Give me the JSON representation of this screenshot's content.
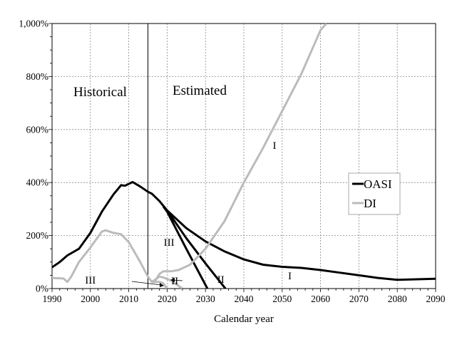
{
  "chart_data": {
    "type": "line",
    "title": "",
    "xlabel": "Calendar year",
    "ylabel": "",
    "xlim": [
      1990,
      2090
    ],
    "ylim": [
      0,
      1000
    ],
    "x_ticks": [
      "1990",
      "2000",
      "2010",
      "2020",
      "2030",
      "2040",
      "2050",
      "2060",
      "2070",
      "2080",
      "2090"
    ],
    "y_ticks": [
      "0%",
      "200%",
      "400%",
      "600%",
      "800%",
      "1,000%"
    ],
    "grid": true,
    "legend": {
      "placement": "right",
      "entries": [
        "OASI",
        "DI"
      ]
    },
    "colors": {
      "OASI": "#000000",
      "DI": "#bbbbbb"
    },
    "divider_year": 2015,
    "region_labels": {
      "historical": "Historical",
      "estimated": "Estimated"
    },
    "series": [
      {
        "name": "OASI",
        "alternative": "I",
        "points": [
          [
            1990,
            80
          ],
          [
            1992,
            100
          ],
          [
            1994,
            125
          ],
          [
            1997,
            150
          ],
          [
            2000,
            210
          ],
          [
            2003,
            290
          ],
          [
            2006,
            355
          ],
          [
            2008,
            390
          ],
          [
            2009,
            388
          ],
          [
            2011,
            402
          ],
          [
            2013,
            385
          ],
          [
            2015,
            365
          ],
          [
            2016,
            358
          ],
          [
            2018,
            330
          ],
          [
            2020,
            295
          ],
          [
            2025,
            228
          ],
          [
            2030,
            178
          ],
          [
            2035,
            140
          ],
          [
            2040,
            110
          ],
          [
            2045,
            90
          ],
          [
            2050,
            82
          ],
          [
            2055,
            78
          ],
          [
            2060,
            70
          ],
          [
            2065,
            60
          ],
          [
            2070,
            50
          ],
          [
            2075,
            40
          ],
          [
            2080,
            33
          ],
          [
            2085,
            35
          ],
          [
            2090,
            37
          ]
        ]
      },
      {
        "name": "OASI",
        "alternative": "II",
        "points": [
          [
            2019,
            310
          ],
          [
            2020,
            295
          ],
          [
            2025,
            190
          ],
          [
            2030,
            95
          ],
          [
            2035.2,
            0
          ]
        ]
      },
      {
        "name": "OASI",
        "alternative": "III",
        "points": [
          [
            2019,
            310
          ],
          [
            2020,
            290
          ],
          [
            2025,
            150
          ],
          [
            2030.5,
            0
          ]
        ]
      },
      {
        "name": "DI",
        "alternative": "I",
        "points": [
          [
            1990,
            40
          ],
          [
            1993,
            38
          ],
          [
            1994,
            25
          ],
          [
            1995,
            45
          ],
          [
            1997,
            100
          ],
          [
            2000,
            155
          ],
          [
            2003,
            215
          ],
          [
            2004,
            220
          ],
          [
            2006,
            210
          ],
          [
            2008,
            205
          ],
          [
            2010,
            175
          ],
          [
            2013,
            100
          ],
          [
            2015,
            45
          ],
          [
            2016,
            25
          ],
          [
            2017,
            32
          ],
          [
            2018,
            55
          ],
          [
            2019,
            65
          ],
          [
            2021,
            65
          ],
          [
            2023,
            70
          ],
          [
            2026,
            90
          ],
          [
            2030,
            150
          ],
          [
            2035,
            255
          ],
          [
            2040,
            400
          ],
          [
            2045,
            530
          ],
          [
            2050,
            670
          ],
          [
            2055,
            810
          ],
          [
            2060,
            975
          ],
          [
            2061.5,
            1000
          ]
        ]
      },
      {
        "name": "DI",
        "alternative": "II",
        "points": [
          [
            2016,
            25
          ],
          [
            2018,
            45
          ],
          [
            2019,
            42
          ],
          [
            2021,
            30
          ],
          [
            2024,
            0
          ]
        ]
      },
      {
        "name": "DI",
        "alternative": "III",
        "points": [
          [
            2016,
            25
          ],
          [
            2018,
            25
          ],
          [
            2019,
            20
          ],
          [
            2020,
            0
          ]
        ]
      }
    ],
    "annotations": [
      {
        "text": "I",
        "x": 2048,
        "y": 540
      },
      {
        "text": "I",
        "x": 2052,
        "y": 48
      },
      {
        "text": "II",
        "x": 2034,
        "y": 35
      },
      {
        "text": "II",
        "x": 2022,
        "y": 30
      },
      {
        "text": "III",
        "x": 2020.5,
        "y": 175
      },
      {
        "text": "III",
        "x": 2000,
        "y": 32
      }
    ]
  }
}
